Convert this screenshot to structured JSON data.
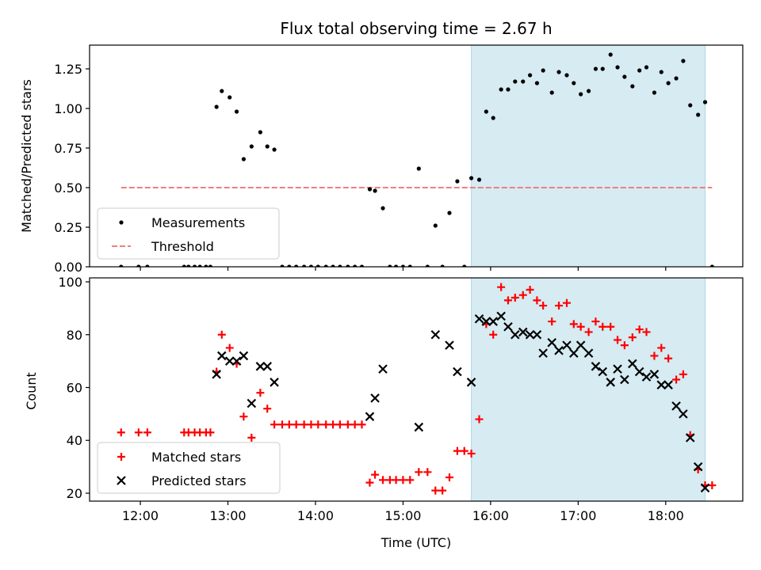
{
  "chart_data": [
    {
      "type": "scatter",
      "title": "Flux total observing time = 2.67 h",
      "xlabel": "",
      "ylabel": "Matched/Predicted stars",
      "xlim": [
        11.42,
        18.88
      ],
      "ylim": [
        0,
        1.4
      ],
      "x_ticks": [
        {
          "value": 12,
          "label": "12:00"
        },
        {
          "value": 13,
          "label": "13:00"
        },
        {
          "value": 14,
          "label": "14:00"
        },
        {
          "value": 15,
          "label": "15:00"
        },
        {
          "value": 16,
          "label": "16:00"
        },
        {
          "value": 17,
          "label": "17:00"
        },
        {
          "value": 18,
          "label": "18:00"
        }
      ],
      "y_ticks": [
        {
          "value": 0,
          "label": "0.00"
        },
        {
          "value": 0.25,
          "label": "0.25"
        },
        {
          "value": 0.5,
          "label": "0.50"
        },
        {
          "value": 0.75,
          "label": "0.75"
        },
        {
          "value": 1.0,
          "label": "1.00"
        },
        {
          "value": 1.25,
          "label": "1.25"
        }
      ],
      "show_x_tick_labels": false,
      "grid": false,
      "legend_position": "lower-left",
      "shaded_region": {
        "x": [
          15.78,
          18.45
        ],
        "color": "#add8e6"
      },
      "series": [
        {
          "name": "Measurements",
          "marker": "dot",
          "color": "#000000",
          "points": [
            [
              11.78,
              0
            ],
            [
              11.98,
              0
            ],
            [
              12.08,
              0
            ],
            [
              12.5,
              0
            ],
            [
              12.55,
              0
            ],
            [
              12.62,
              0
            ],
            [
              12.68,
              0
            ],
            [
              12.75,
              0
            ],
            [
              12.8,
              0
            ],
            [
              12.87,
              1.01
            ],
            [
              12.93,
              1.11
            ],
            [
              13.02,
              1.07
            ],
            [
              13.1,
              0.98
            ],
            [
              13.18,
              0.68
            ],
            [
              13.27,
              0.76
            ],
            [
              13.37,
              0.85
            ],
            [
              13.45,
              0.76
            ],
            [
              13.53,
              0.74
            ],
            [
              13.62,
              0
            ],
            [
              13.7,
              0
            ],
            [
              13.78,
              0
            ],
            [
              13.87,
              0
            ],
            [
              13.95,
              0
            ],
            [
              14.03,
              0
            ],
            [
              14.12,
              0
            ],
            [
              14.2,
              0
            ],
            [
              14.28,
              0
            ],
            [
              14.37,
              0
            ],
            [
              14.45,
              0
            ],
            [
              14.53,
              0
            ],
            [
              14.62,
              0.49
            ],
            [
              14.68,
              0.48
            ],
            [
              14.77,
              0.37
            ],
            [
              14.85,
              0
            ],
            [
              14.92,
              0
            ],
            [
              15.0,
              0
            ],
            [
              15.08,
              0
            ],
            [
              15.18,
              0.62
            ],
            [
              15.28,
              0
            ],
            [
              15.37,
              0.26
            ],
            [
              15.45,
              0
            ],
            [
              15.53,
              0.34
            ],
            [
              15.62,
              0.54
            ],
            [
              15.7,
              0
            ],
            [
              15.78,
              0.56
            ],
            [
              15.87,
              0.55
            ],
            [
              15.95,
              0.98
            ],
            [
              16.03,
              0.94
            ],
            [
              16.12,
              1.12
            ],
            [
              16.2,
              1.12
            ],
            [
              16.28,
              1.17
            ],
            [
              16.37,
              1.17
            ],
            [
              16.45,
              1.21
            ],
            [
              16.53,
              1.16
            ],
            [
              16.6,
              1.24
            ],
            [
              16.7,
              1.1
            ],
            [
              16.78,
              1.23
            ],
            [
              16.87,
              1.21
            ],
            [
              16.95,
              1.16
            ],
            [
              17.03,
              1.09
            ],
            [
              17.12,
              1.11
            ],
            [
              17.2,
              1.25
            ],
            [
              17.28,
              1.25
            ],
            [
              17.37,
              1.34
            ],
            [
              17.45,
              1.26
            ],
            [
              17.53,
              1.2
            ],
            [
              17.62,
              1.14
            ],
            [
              17.7,
              1.24
            ],
            [
              17.78,
              1.26
            ],
            [
              17.87,
              1.1
            ],
            [
              17.95,
              1.23
            ],
            [
              18.03,
              1.16
            ],
            [
              18.12,
              1.19
            ],
            [
              18.2,
              1.3
            ],
            [
              18.28,
              1.02
            ],
            [
              18.37,
              0.96
            ],
            [
              18.45,
              1.04
            ],
            [
              18.53,
              0
            ]
          ]
        },
        {
          "name": "Threshold",
          "marker": "dashed-line",
          "color": "#f08080",
          "points": [
            [
              11.78,
              0.5
            ],
            [
              18.53,
              0.5
            ]
          ]
        }
      ]
    },
    {
      "type": "scatter",
      "title": "",
      "xlabel": "Time (UTC)",
      "ylabel": "Count",
      "xlim": [
        11.42,
        18.88
      ],
      "ylim": [
        17,
        101.5
      ],
      "x_ticks": [
        {
          "value": 12,
          "label": "12:00"
        },
        {
          "value": 13,
          "label": "13:00"
        },
        {
          "value": 14,
          "label": "14:00"
        },
        {
          "value": 15,
          "label": "15:00"
        },
        {
          "value": 16,
          "label": "16:00"
        },
        {
          "value": 17,
          "label": "17:00"
        },
        {
          "value": 18,
          "label": "18:00"
        }
      ],
      "y_ticks": [
        {
          "value": 20,
          "label": "20"
        },
        {
          "value": 40,
          "label": "40"
        },
        {
          "value": 60,
          "label": "60"
        },
        {
          "value": 80,
          "label": "80"
        },
        {
          "value": 100,
          "label": "100"
        }
      ],
      "show_x_tick_labels": true,
      "grid": false,
      "legend_position": "lower-left",
      "shaded_region": {
        "x": [
          15.78,
          18.45
        ],
        "color": "#add8e6"
      },
      "series": [
        {
          "name": "Matched stars",
          "marker": "plus",
          "color": "#ff0000",
          "points": [
            [
              11.78,
              43
            ],
            [
              11.98,
              43
            ],
            [
              12.08,
              43
            ],
            [
              12.5,
              43
            ],
            [
              12.55,
              43
            ],
            [
              12.62,
              43
            ],
            [
              12.68,
              43
            ],
            [
              12.75,
              43
            ],
            [
              12.8,
              43
            ],
            [
              12.87,
              66
            ],
            [
              12.93,
              80
            ],
            [
              13.02,
              75
            ],
            [
              13.1,
              69
            ],
            [
              13.18,
              49
            ],
            [
              13.27,
              41
            ],
            [
              13.37,
              58
            ],
            [
              13.45,
              52
            ],
            [
              13.53,
              46
            ],
            [
              13.62,
              46
            ],
            [
              13.7,
              46
            ],
            [
              13.78,
              46
            ],
            [
              13.87,
              46
            ],
            [
              13.95,
              46
            ],
            [
              14.03,
              46
            ],
            [
              14.12,
              46
            ],
            [
              14.2,
              46
            ],
            [
              14.28,
              46
            ],
            [
              14.37,
              46
            ],
            [
              14.45,
              46
            ],
            [
              14.53,
              46
            ],
            [
              14.62,
              24
            ],
            [
              14.68,
              27
            ],
            [
              14.77,
              25
            ],
            [
              14.85,
              25
            ],
            [
              14.92,
              25
            ],
            [
              15.0,
              25
            ],
            [
              15.08,
              25
            ],
            [
              15.18,
              28
            ],
            [
              15.28,
              28
            ],
            [
              15.37,
              21
            ],
            [
              15.45,
              21
            ],
            [
              15.53,
              26
            ],
            [
              15.62,
              36
            ],
            [
              15.7,
              36
            ],
            [
              15.78,
              35
            ],
            [
              15.87,
              48
            ],
            [
              15.95,
              84
            ],
            [
              16.03,
              80
            ],
            [
              16.12,
              98
            ],
            [
              16.2,
              93
            ],
            [
              16.28,
              94
            ],
            [
              16.37,
              95
            ],
            [
              16.45,
              97
            ],
            [
              16.53,
              93
            ],
            [
              16.6,
              91
            ],
            [
              16.7,
              85
            ],
            [
              16.78,
              91
            ],
            [
              16.87,
              92
            ],
            [
              16.95,
              84
            ],
            [
              17.03,
              83
            ],
            [
              17.12,
              81
            ],
            [
              17.2,
              85
            ],
            [
              17.28,
              83
            ],
            [
              17.37,
              83
            ],
            [
              17.45,
              78
            ],
            [
              17.53,
              76
            ],
            [
              17.62,
              79
            ],
            [
              17.7,
              82
            ],
            [
              17.78,
              81
            ],
            [
              17.87,
              72
            ],
            [
              17.95,
              75
            ],
            [
              18.03,
              71
            ],
            [
              18.12,
              63
            ],
            [
              18.2,
              65
            ],
            [
              18.28,
              42
            ],
            [
              18.37,
              29
            ],
            [
              18.45,
              23
            ],
            [
              18.53,
              23
            ]
          ]
        },
        {
          "name": "Predicted stars",
          "marker": "x",
          "color": "#000000",
          "points": [
            [
              12.87,
              65
            ],
            [
              12.93,
              72
            ],
            [
              13.02,
              70
            ],
            [
              13.1,
              70
            ],
            [
              13.18,
              72
            ],
            [
              13.27,
              54
            ],
            [
              13.37,
              68
            ],
            [
              13.45,
              68
            ],
            [
              13.53,
              62
            ],
            [
              14.62,
              49
            ],
            [
              14.68,
              56
            ],
            [
              14.77,
              67
            ],
            [
              15.18,
              45
            ],
            [
              15.37,
              80
            ],
            [
              15.53,
              76
            ],
            [
              15.62,
              66
            ],
            [
              15.78,
              62
            ],
            [
              15.87,
              86
            ],
            [
              15.95,
              85
            ],
            [
              16.03,
              85
            ],
            [
              16.12,
              87
            ],
            [
              16.2,
              83
            ],
            [
              16.28,
              80
            ],
            [
              16.37,
              81
            ],
            [
              16.45,
              80
            ],
            [
              16.53,
              80
            ],
            [
              16.6,
              73
            ],
            [
              16.7,
              77
            ],
            [
              16.78,
              74
            ],
            [
              16.87,
              76
            ],
            [
              16.95,
              73
            ],
            [
              17.03,
              76
            ],
            [
              17.12,
              73
            ],
            [
              17.2,
              68
            ],
            [
              17.28,
              66
            ],
            [
              17.37,
              62
            ],
            [
              17.45,
              67
            ],
            [
              17.53,
              63
            ],
            [
              17.62,
              69
            ],
            [
              17.7,
              66
            ],
            [
              17.78,
              64
            ],
            [
              17.87,
              65
            ],
            [
              17.95,
              61
            ],
            [
              18.03,
              61
            ],
            [
              18.12,
              53
            ],
            [
              18.2,
              50
            ],
            [
              18.28,
              41
            ],
            [
              18.37,
              30
            ],
            [
              18.45,
              22
            ]
          ]
        }
      ]
    }
  ]
}
